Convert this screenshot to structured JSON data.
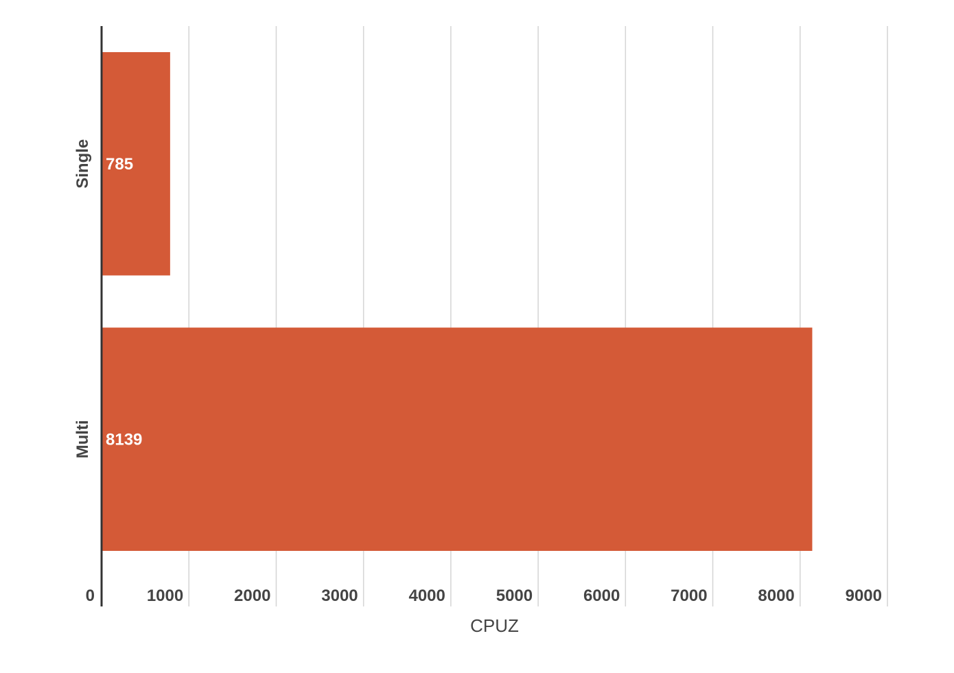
{
  "chart_data": {
    "type": "bar",
    "orientation": "horizontal",
    "categories": [
      "Single",
      "Multi"
    ],
    "values": [
      785,
      8139
    ],
    "data_labels": [
      "785",
      "8139"
    ],
    "xlabel": "CPUZ",
    "ylabel": "",
    "xlim": [
      0,
      9000
    ],
    "x_ticks": [
      0,
      1000,
      2000,
      3000,
      4000,
      5000,
      6000,
      7000,
      8000,
      9000
    ],
    "x_tick_labels": [
      "0",
      "1000",
      "2000",
      "3000",
      "4000",
      "5000",
      "6000",
      "7000",
      "8000",
      "9000"
    ],
    "grid": true,
    "legend": "none",
    "colors": {
      "bar": "#d45a37",
      "grid": "#d4d4d4",
      "axis": "#333333",
      "text": "#444444",
      "value_text": "#ffffff"
    }
  }
}
